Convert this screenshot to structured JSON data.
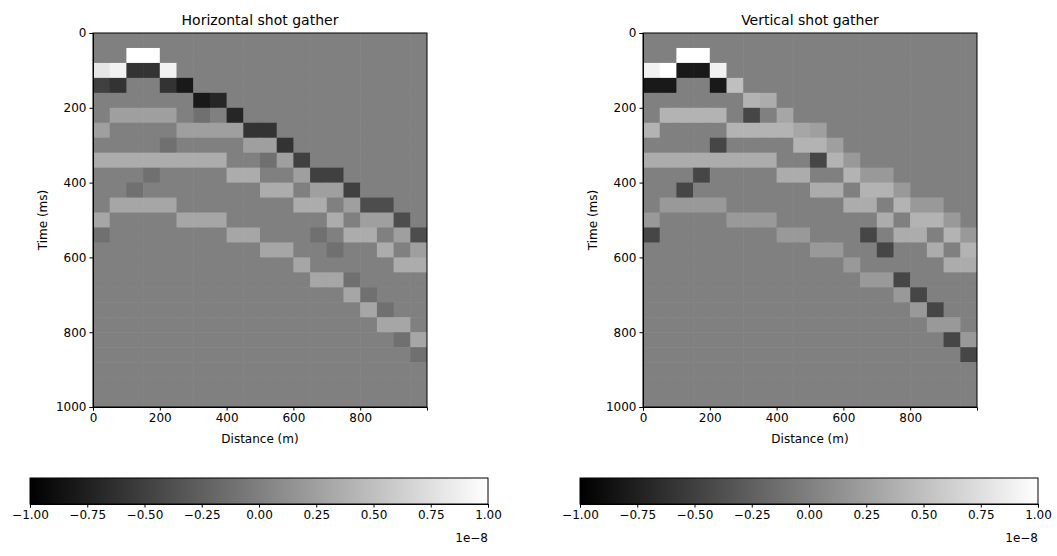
{
  "chart_data": [
    {
      "type": "heatmap",
      "title": "Horizontal shot gather",
      "x_label": "Distance (m)",
      "y_label": "Time (ms)",
      "x": [
        25,
        75,
        125,
        175,
        225,
        275,
        325,
        375,
        425,
        475,
        525,
        575,
        625,
        675,
        725,
        775,
        825,
        875,
        925,
        975
      ],
      "y": [
        20,
        60,
        100,
        140,
        180,
        220,
        260,
        300,
        340,
        380,
        420,
        460,
        500,
        540,
        580,
        620,
        660,
        700,
        740,
        780,
        820,
        860,
        900,
        940,
        980
      ],
      "xlim": [
        0,
        1000
      ],
      "ylim": [
        1000,
        0
      ],
      "xticks": [
        0,
        200,
        400,
        600,
        800
      ],
      "yticks": [
        0,
        200,
        400,
        600,
        800,
        1000
      ],
      "values": [
        [
          0,
          0,
          0,
          0,
          0,
          0,
          0,
          0,
          0,
          0,
          0,
          0,
          0,
          0,
          0,
          0,
          0,
          0,
          0,
          0
        ],
        [
          0,
          0,
          1,
          1,
          0,
          0,
          0,
          0,
          0,
          0,
          0,
          0,
          0,
          0,
          0,
          0,
          0,
          0,
          0,
          0
        ],
        [
          0.8,
          0.9,
          -0.6,
          -0.6,
          0.9,
          0,
          0,
          0,
          0,
          0,
          0,
          0,
          0,
          0,
          0,
          0,
          0,
          0,
          0,
          0
        ],
        [
          -0.5,
          -0.6,
          0,
          0,
          -0.6,
          -0.8,
          0,
          0,
          0,
          0,
          0,
          0,
          0,
          0,
          0,
          0,
          0,
          0,
          0,
          0
        ],
        [
          0,
          0,
          0,
          0,
          0,
          0,
          -0.8,
          -0.7,
          0,
          0,
          0,
          0,
          0,
          0,
          0,
          0,
          0,
          0,
          0,
          0
        ],
        [
          0,
          0.25,
          0.25,
          0.25,
          0.25,
          0,
          -0.12,
          0,
          -0.7,
          0,
          0,
          0,
          0,
          0,
          0,
          0,
          0,
          0,
          0,
          0
        ],
        [
          0.25,
          0,
          0,
          0,
          0,
          0.25,
          0.25,
          0.25,
          0.25,
          -0.6,
          -0.6,
          0,
          0,
          0,
          0,
          0,
          0,
          0,
          0,
          0
        ],
        [
          0,
          0,
          0,
          0,
          -0.12,
          0,
          0,
          0,
          0,
          0.25,
          0.25,
          -0.6,
          0,
          0,
          0,
          0,
          0,
          0,
          0,
          0
        ],
        [
          0.35,
          0.35,
          0.35,
          0.35,
          0.35,
          0.35,
          0.35,
          0.35,
          0,
          0,
          -0.12,
          0.25,
          -0.5,
          0,
          0,
          0,
          0,
          0,
          0,
          0
        ],
        [
          0,
          0,
          0,
          -0.12,
          0,
          0,
          0,
          0,
          0.35,
          0.35,
          0,
          0,
          0.25,
          -0.5,
          -0.5,
          0,
          0,
          0,
          0,
          0
        ],
        [
          0,
          0,
          -0.12,
          0,
          0,
          0,
          0,
          0,
          0,
          0,
          0.35,
          0.35,
          0,
          0.25,
          0.25,
          -0.5,
          0,
          0,
          0,
          0
        ],
        [
          0,
          0.3,
          0.3,
          0.3,
          0.3,
          0,
          0,
          0,
          0,
          0,
          0,
          0,
          0.35,
          0.35,
          0,
          0.25,
          -0.4,
          -0.4,
          0,
          0
        ],
        [
          0.3,
          0,
          0,
          0,
          0,
          0.3,
          0.3,
          0.3,
          0,
          0,
          0,
          0,
          0,
          0,
          0.35,
          0,
          0.25,
          0.25,
          -0.4,
          0
        ],
        [
          -0.12,
          0,
          0,
          0,
          0,
          0,
          0,
          0,
          0.3,
          0.3,
          0,
          0,
          0,
          -0.12,
          0,
          0.35,
          0.35,
          0,
          0.25,
          -0.4
        ],
        [
          0,
          0,
          0,
          0,
          0,
          0,
          0,
          0,
          0,
          0,
          0.3,
          0.3,
          0,
          0,
          -0.12,
          0,
          0,
          0.35,
          0,
          0.25
        ],
        [
          0,
          0,
          0,
          0,
          0,
          0,
          0,
          0,
          0,
          0,
          0,
          0,
          0.3,
          0,
          0,
          0,
          0,
          0,
          0.35,
          0.35
        ],
        [
          0,
          0,
          0,
          0,
          0,
          0,
          0,
          0,
          0,
          0,
          0,
          0,
          0,
          0.3,
          0.3,
          -0.12,
          0,
          0,
          0,
          0
        ],
        [
          0,
          0,
          0,
          0,
          0,
          0,
          0,
          0,
          0,
          0,
          0,
          0,
          0,
          0,
          0,
          0.3,
          -0.12,
          0,
          0,
          0
        ],
        [
          0,
          0,
          0,
          0,
          0,
          0,
          0,
          0,
          0,
          0,
          0,
          0,
          0,
          0,
          0,
          0,
          0.3,
          -0.12,
          0,
          0
        ],
        [
          0,
          0,
          0,
          0,
          0,
          0,
          0,
          0,
          0,
          0,
          0,
          0,
          0,
          0,
          0,
          0,
          0,
          0.3,
          0.3,
          0
        ],
        [
          0,
          0,
          0,
          0,
          0,
          0,
          0,
          0,
          0,
          0,
          0,
          0,
          0,
          0,
          0,
          0,
          0,
          0,
          -0.12,
          0.3
        ],
        [
          0,
          0,
          0,
          0,
          0,
          0,
          0,
          0,
          0,
          0,
          0,
          0,
          0,
          0,
          0,
          0,
          0,
          0,
          0,
          -0.12
        ],
        [
          0,
          0,
          0,
          0,
          0,
          0,
          0,
          0,
          0,
          0,
          0,
          0,
          0,
          0,
          0,
          0,
          0,
          0,
          0,
          0
        ],
        [
          0,
          0,
          0,
          0,
          0,
          0,
          0,
          0,
          0,
          0,
          0,
          0,
          0,
          0,
          0,
          0,
          0,
          0,
          0,
          0
        ],
        [
          0,
          0,
          0,
          0,
          0,
          0,
          0,
          0,
          0,
          0,
          0,
          0,
          0,
          0,
          0,
          0,
          0,
          0,
          0,
          0
        ]
      ],
      "colorbar": {
        "range": [
          -1,
          1
        ],
        "colors": [
          "#000000",
          "#ffffff"
        ],
        "offset_label": "1e−8",
        "ticks": [
          {
            "value": -1,
            "label": "−1.00"
          },
          {
            "value": -0.75,
            "label": "−0.75"
          },
          {
            "value": -0.5,
            "label": "−0.50"
          },
          {
            "value": -0.25,
            "label": "−0.25"
          },
          {
            "value": 0,
            "label": "0.00"
          },
          {
            "value": 0.25,
            "label": "0.25"
          },
          {
            "value": 0.5,
            "label": "0.50"
          },
          {
            "value": 0.75,
            "label": "0.75"
          },
          {
            "value": 1,
            "label": "1.00"
          }
        ]
      }
    },
    {
      "type": "heatmap",
      "title": "Vertical shot gather",
      "x_label": "Distance (m)",
      "y_label": "Time (ms)",
      "x": [
        25,
        75,
        125,
        175,
        225,
        275,
        325,
        375,
        425,
        475,
        525,
        575,
        625,
        675,
        725,
        775,
        825,
        875,
        925,
        975
      ],
      "y": [
        20,
        60,
        100,
        140,
        180,
        220,
        260,
        300,
        340,
        380,
        420,
        460,
        500,
        540,
        580,
        620,
        660,
        700,
        740,
        780,
        820,
        860,
        900,
        940,
        980
      ],
      "xlim": [
        0,
        1000
      ],
      "ylim": [
        1000,
        0
      ],
      "xticks": [
        0,
        200,
        400,
        600,
        800
      ],
      "yticks": [
        0,
        200,
        400,
        600,
        800,
        1000
      ],
      "values": [
        [
          0,
          0,
          0,
          0,
          0,
          0,
          0,
          0,
          0,
          0,
          0,
          0,
          0,
          0,
          0,
          0,
          0,
          0,
          0,
          0
        ],
        [
          0,
          0,
          1,
          1,
          0,
          0,
          0,
          0,
          0,
          0,
          0,
          0,
          0,
          0,
          0,
          0,
          0,
          0,
          0,
          0
        ],
        [
          0.9,
          1,
          -0.8,
          -0.8,
          0.9,
          0,
          0,
          0,
          0,
          0,
          0,
          0,
          0,
          0,
          0,
          0,
          0,
          0,
          0,
          0
        ],
        [
          -0.8,
          -0.8,
          0,
          0,
          -0.8,
          0.5,
          0,
          0,
          0,
          0,
          0,
          0,
          0,
          0,
          0,
          0,
          0,
          0,
          0,
          0
        ],
        [
          0,
          0,
          0,
          0,
          0,
          0,
          0.4,
          0.35,
          0,
          0,
          0,
          0,
          0,
          0,
          0,
          0,
          0,
          0,
          0,
          0
        ],
        [
          0,
          0.4,
          0.4,
          0.4,
          0.4,
          0,
          -0.45,
          0,
          0.3,
          0,
          0,
          0,
          0,
          0,
          0,
          0,
          0,
          0,
          0,
          0
        ],
        [
          0.4,
          0,
          0,
          0,
          0,
          0.4,
          0.4,
          0.4,
          0.4,
          0.3,
          0.25,
          0,
          0,
          0,
          0,
          0,
          0,
          0,
          0,
          0
        ],
        [
          0,
          0,
          0,
          0,
          -0.45,
          0,
          0,
          0,
          0,
          0.4,
          0.4,
          0.25,
          0,
          0,
          0,
          0,
          0,
          0,
          0,
          0
        ],
        [
          0.35,
          0.35,
          0.35,
          0.35,
          0.35,
          0.35,
          0.35,
          0.35,
          0,
          0,
          -0.45,
          0.4,
          0.2,
          0,
          0,
          0,
          0,
          0,
          0,
          0
        ],
        [
          0,
          0,
          0,
          -0.45,
          0,
          0,
          0,
          0,
          0.35,
          0.35,
          0,
          0,
          0.4,
          0.2,
          0.2,
          0,
          0,
          0,
          0,
          0
        ],
        [
          0,
          0,
          -0.45,
          0,
          0,
          0,
          0,
          0,
          0,
          0,
          0.35,
          0.35,
          0,
          0.4,
          0.4,
          0.2,
          0,
          0,
          0,
          0
        ],
        [
          0,
          0.2,
          0.2,
          0.2,
          0.2,
          0,
          0,
          0,
          0,
          0,
          0,
          0,
          0.35,
          0.35,
          0,
          0.4,
          0.2,
          0.2,
          0,
          0
        ],
        [
          0.2,
          0,
          0,
          0,
          0,
          0.2,
          0.2,
          0.2,
          0,
          0,
          0,
          0,
          0,
          0,
          0.35,
          0,
          0.4,
          0.4,
          0.2,
          0
        ],
        [
          -0.45,
          0,
          0,
          0,
          0,
          0,
          0,
          0,
          0.2,
          0.2,
          0,
          0,
          0,
          -0.45,
          0,
          0.35,
          0.35,
          0,
          0.4,
          0.2
        ],
        [
          0,
          0,
          0,
          0,
          0,
          0,
          0,
          0,
          0,
          0,
          0.2,
          0.2,
          0,
          0,
          -0.45,
          0,
          0,
          0.35,
          0,
          0.4
        ],
        [
          0,
          0,
          0,
          0,
          0,
          0,
          0,
          0,
          0,
          0,
          0,
          0,
          0.2,
          0,
          0,
          0,
          0,
          0,
          0.35,
          0.35
        ],
        [
          0,
          0,
          0,
          0,
          0,
          0,
          0,
          0,
          0,
          0,
          0,
          0,
          0,
          0.2,
          0.2,
          -0.45,
          0,
          0,
          0,
          0
        ],
        [
          0,
          0,
          0,
          0,
          0,
          0,
          0,
          0,
          0,
          0,
          0,
          0,
          0,
          0,
          0,
          0.2,
          -0.45,
          0,
          0,
          0
        ],
        [
          0,
          0,
          0,
          0,
          0,
          0,
          0,
          0,
          0,
          0,
          0,
          0,
          0,
          0,
          0,
          0,
          0.2,
          -0.45,
          0,
          0
        ],
        [
          0,
          0,
          0,
          0,
          0,
          0,
          0,
          0,
          0,
          0,
          0,
          0,
          0,
          0,
          0,
          0,
          0,
          0.2,
          0.2,
          0
        ],
        [
          0,
          0,
          0,
          0,
          0,
          0,
          0,
          0,
          0,
          0,
          0,
          0,
          0,
          0,
          0,
          0,
          0,
          0,
          -0.45,
          0.2
        ],
        [
          0,
          0,
          0,
          0,
          0,
          0,
          0,
          0,
          0,
          0,
          0,
          0,
          0,
          0,
          0,
          0,
          0,
          0,
          0,
          -0.45
        ],
        [
          0,
          0,
          0,
          0,
          0,
          0,
          0,
          0,
          0,
          0,
          0,
          0,
          0,
          0,
          0,
          0,
          0,
          0,
          0,
          0
        ],
        [
          0,
          0,
          0,
          0,
          0,
          0,
          0,
          0,
          0,
          0,
          0,
          0,
          0,
          0,
          0,
          0,
          0,
          0,
          0,
          0
        ],
        [
          0,
          0,
          0,
          0,
          0,
          0,
          0,
          0,
          0,
          0,
          0,
          0,
          0,
          0,
          0,
          0,
          0,
          0,
          0,
          0
        ]
      ],
      "colorbar": {
        "range": [
          -1,
          1
        ],
        "colors": [
          "#000000",
          "#ffffff"
        ],
        "offset_label": "1e−8",
        "ticks": [
          {
            "value": -1,
            "label": "−1.00"
          },
          {
            "value": -0.75,
            "label": "−0.75"
          },
          {
            "value": -0.5,
            "label": "−0.50"
          },
          {
            "value": -0.25,
            "label": "−0.25"
          },
          {
            "value": 0,
            "label": "0.00"
          },
          {
            "value": 0.25,
            "label": "0.25"
          },
          {
            "value": 0.5,
            "label": "0.50"
          },
          {
            "value": 0.75,
            "label": "0.75"
          },
          {
            "value": 1,
            "label": "1.00"
          }
        ]
      }
    }
  ]
}
